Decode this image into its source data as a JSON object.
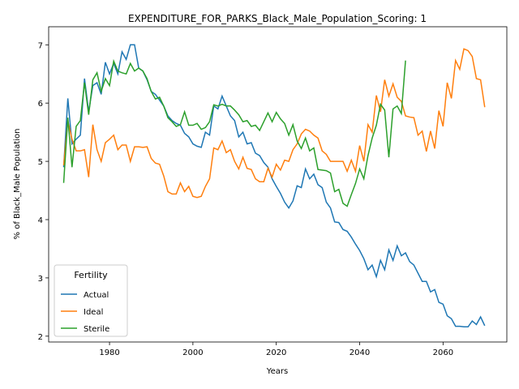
{
  "chart_data": {
    "type": "line",
    "title": "EXPENDITURE_FOR_PARKS_Black_Male_Population_Scoring: 1",
    "x_label": "Years",
    "y_label": "% of Black_Male Population",
    "legend_title": "Fertility",
    "legend": "lower left",
    "x": [
      1969,
      1970,
      1971,
      1972,
      1973,
      1974,
      1975,
      1976,
      1977,
      1978,
      1979,
      1980,
      1981,
      1982,
      1983,
      1984,
      1985,
      1986,
      1987,
      1988,
      1989,
      1990,
      1991,
      1992,
      1993,
      1994,
      1995,
      1996,
      1997,
      1998,
      1999,
      2000,
      2001,
      2002,
      2003,
      2004,
      2005,
      2006,
      2007,
      2008,
      2009,
      2010,
      2011,
      2012,
      2013,
      2014,
      2015,
      2016,
      2017,
      2018,
      2019,
      2020,
      2021,
      2022,
      2023,
      2024,
      2025,
      2026,
      2027,
      2028,
      2029,
      2030,
      2031,
      2032,
      2033,
      2034,
      2035,
      2036,
      2037,
      2038,
      2039,
      2040,
      2041,
      2042,
      2043,
      2044,
      2045,
      2046,
      2047,
      2048,
      2049,
      2050,
      2051,
      2052,
      2053,
      2054,
      2055,
      2056,
      2057,
      2058,
      2059,
      2060,
      2061,
      2062,
      2063,
      2064,
      2065,
      2066,
      2067,
      2068,
      2069,
      2070
    ],
    "series": [
      {
        "name": "Actual",
        "color": "#1f77b4",
        "values": [
          4.9,
          6.08,
          5.3,
          5.38,
          5.45,
          6.42,
          5.85,
          6.3,
          6.35,
          6.15,
          6.7,
          6.5,
          6.68,
          6.5,
          6.88,
          6.75,
          7.0,
          7.0,
          6.6,
          6.55,
          6.4,
          6.2,
          6.15,
          6.05,
          5.95,
          5.78,
          5.7,
          5.65,
          5.62,
          5.48,
          5.42,
          5.3,
          5.26,
          5.24,
          5.5,
          5.45,
          5.95,
          5.9,
          6.12,
          5.95,
          5.78,
          5.7,
          5.42,
          5.5,
          5.3,
          5.32,
          5.14,
          5.1,
          4.98,
          4.9,
          4.7,
          4.57,
          4.45,
          4.3,
          4.2,
          4.32,
          4.58,
          4.55,
          4.87,
          4.7,
          4.78,
          4.6,
          4.55,
          4.3,
          4.2,
          3.96,
          3.95,
          3.83,
          3.8,
          3.7,
          3.58,
          3.47,
          3.33,
          3.14,
          3.22,
          3.02,
          3.3,
          3.14,
          3.48,
          3.3,
          3.55,
          3.38,
          3.43,
          3.28,
          3.22,
          3.08,
          2.94,
          2.94,
          2.76,
          2.8,
          2.58,
          2.55,
          2.35,
          2.3,
          2.17,
          2.17,
          2.16,
          2.16,
          2.26,
          2.2,
          2.33,
          2.18
        ]
      },
      {
        "name": "Ideal",
        "color": "#ff7f0e",
        "values": [
          4.93,
          5.7,
          5.38,
          5.18,
          5.18,
          5.2,
          4.73,
          5.63,
          5.2,
          5.0,
          5.32,
          5.38,
          5.45,
          5.2,
          5.28,
          5.28,
          5.0,
          5.25,
          5.25,
          5.24,
          5.25,
          5.05,
          4.97,
          4.95,
          4.75,
          4.48,
          4.44,
          4.44,
          4.63,
          4.48,
          4.57,
          4.4,
          4.38,
          4.4,
          4.57,
          4.7,
          5.23,
          5.2,
          5.35,
          5.15,
          5.2,
          5.0,
          4.87,
          5.07,
          4.88,
          4.86,
          4.7,
          4.65,
          4.65,
          4.88,
          4.73,
          4.95,
          4.85,
          5.02,
          5.0,
          5.2,
          5.3,
          5.47,
          5.55,
          5.52,
          5.45,
          5.4,
          5.18,
          5.12,
          5.0,
          5.0,
          5.0,
          5.0,
          4.83,
          5.02,
          4.83,
          5.27,
          5.0,
          5.63,
          5.5,
          6.13,
          5.85,
          6.4,
          6.12,
          6.33,
          6.1,
          6.03,
          5.78,
          5.76,
          5.75,
          5.45,
          5.52,
          5.17,
          5.52,
          5.22,
          5.87,
          5.6,
          6.35,
          6.08,
          6.73,
          6.58,
          6.93,
          6.9,
          6.8,
          6.42,
          6.4,
          5.93
        ]
      },
      {
        "name": "Sterile",
        "color": "#2ca02c",
        "values": [
          4.63,
          5.75,
          4.9,
          5.6,
          5.7,
          6.35,
          5.8,
          6.4,
          6.52,
          6.2,
          6.42,
          6.3,
          6.72,
          6.55,
          6.52,
          6.5,
          6.68,
          6.55,
          6.6,
          6.55,
          6.42,
          6.2,
          6.07,
          6.1,
          5.95,
          5.75,
          5.68,
          5.6,
          5.63,
          5.85,
          5.62,
          5.62,
          5.65,
          5.55,
          5.58,
          5.68,
          5.97,
          5.95,
          5.98,
          5.95,
          5.95,
          5.88,
          5.8,
          5.68,
          5.7,
          5.6,
          5.62,
          5.53,
          5.68,
          5.83,
          5.68,
          5.84,
          5.73,
          5.65,
          5.45,
          5.63,
          5.35,
          5.22,
          5.4,
          5.18,
          5.23,
          4.86,
          4.85,
          4.84,
          4.8,
          4.48,
          4.52,
          4.28,
          4.23,
          4.43,
          4.62,
          4.87,
          4.7,
          5.1,
          5.4,
          5.62,
          5.98,
          5.88,
          5.07,
          5.9,
          5.95,
          5.82,
          6.73,
          null,
          null,
          null,
          null,
          null,
          null,
          null,
          null,
          null,
          null,
          null,
          null,
          null,
          null,
          null,
          null,
          null,
          null,
          null
        ]
      }
    ],
    "xlim": [
      1965.4,
      2075.3
    ],
    "ylim": [
      1.9,
      7.31
    ],
    "xticks": [
      1980,
      2000,
      2020,
      2040,
      2060
    ],
    "yticks": [
      2,
      3,
      4,
      5,
      6,
      7
    ]
  }
}
